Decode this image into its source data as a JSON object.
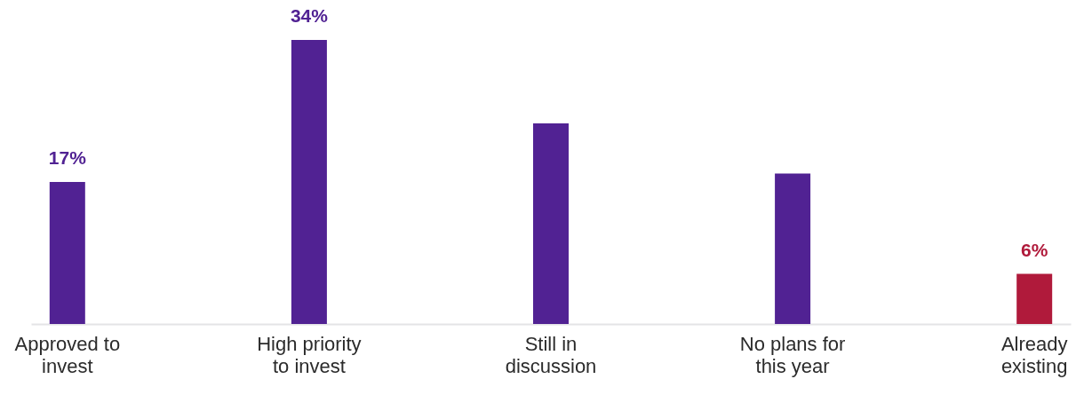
{
  "chart_data": {
    "type": "bar",
    "categories": [
      "Approved to invest",
      "High priority to invest",
      "Still in discussion",
      "No plans for this year",
      "Already existing"
    ],
    "values": [
      17,
      34,
      24,
      18,
      6
    ],
    "colors": [
      "#512293",
      "#512293",
      "#512293",
      "#512293",
      "#b01a3b"
    ],
    "value_labels": [
      "17%",
      "34%",
      null,
      null,
      "6%"
    ],
    "tick_labels": "x"
  }
}
